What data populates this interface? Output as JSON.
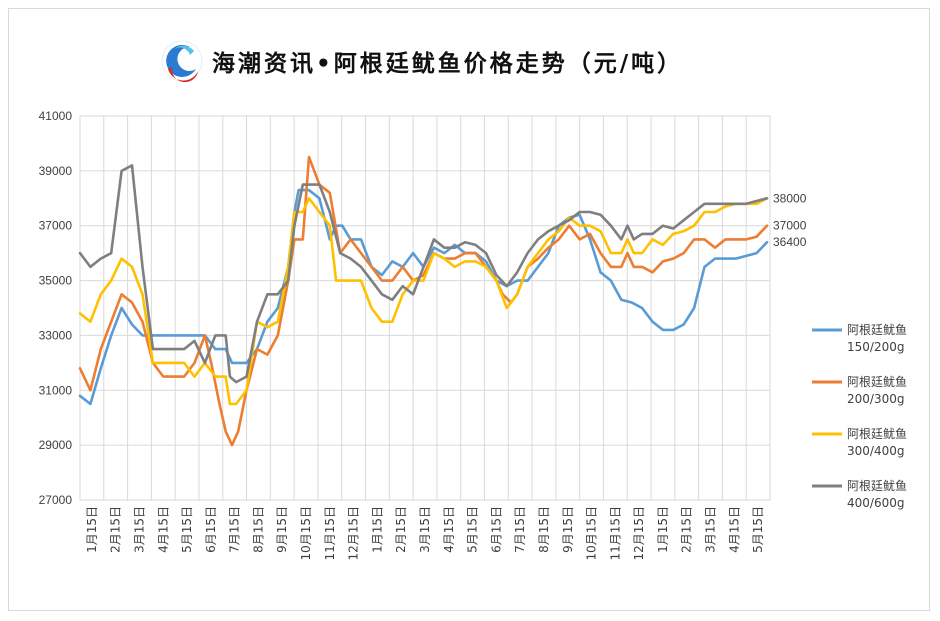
{
  "title": "海潮资讯•阿根廷鱿鱼价格走势（元/吨）",
  "logo_icon": "haichao-logo-icon",
  "chart_data": {
    "type": "line",
    "title": "海潮资讯•阿根廷鱿鱼价格走势（元/吨）",
    "ylim": [
      27000,
      41000
    ],
    "yticks": [
      27000,
      29000,
      31000,
      33000,
      35000,
      37000,
      39000,
      41000
    ],
    "ytick_labels": [
      "27000",
      "29000",
      "31000",
      "33000",
      "35000",
      "37000",
      "39000",
      "41000"
    ],
    "xtick_labels": [
      "1月15日",
      "2月15日",
      "3月15日",
      "4月15日",
      "5月15日",
      "6月15日",
      "7月15日",
      "8月15日",
      "9月15日",
      "10月15日",
      "11月15日",
      "12月15日",
      "1月15日",
      "2月15日",
      "3月15日",
      "4月15日",
      "5月15日",
      "6月15日",
      "7月15日",
      "8月15日",
      "9月15日",
      "10月15日",
      "11月15日",
      "12月15日",
      "1月15日",
      "2月15日",
      "3月15日",
      "4月15日",
      "5月15日"
    ],
    "grid": true,
    "legend_position": "right",
    "end_labels": [
      "38000",
      "37000",
      "36400"
    ],
    "series": [
      {
        "name": "阿根廷鱿鱼150/200g",
        "legend_lines": [
          "阿根廷鱿鱼",
          "150/200g"
        ],
        "color": "#5b9bd5",
        "points": [
          [
            0,
            30800
          ],
          [
            0.5,
            30500
          ],
          [
            1,
            31800
          ],
          [
            1.5,
            33000
          ],
          [
            2,
            34000
          ],
          [
            2.5,
            33400
          ],
          [
            3,
            33000
          ],
          [
            4,
            33000
          ],
          [
            5,
            33000
          ],
          [
            5.5,
            33000
          ],
          [
            6,
            33000
          ],
          [
            6.5,
            32500
          ],
          [
            7,
            32500
          ],
          [
            7.3,
            32000
          ],
          [
            8,
            32000
          ],
          [
            8.5,
            32500
          ],
          [
            9,
            33500
          ],
          [
            9.5,
            34000
          ],
          [
            10,
            35500
          ],
          [
            10.3,
            37500
          ],
          [
            10.5,
            38300
          ],
          [
            11,
            38300
          ],
          [
            11.5,
            38000
          ],
          [
            12,
            36500
          ],
          [
            12.3,
            37000
          ],
          [
            12.6,
            37000
          ],
          [
            13,
            36500
          ],
          [
            13.5,
            36500
          ],
          [
            14,
            35500
          ],
          [
            14.5,
            35200
          ],
          [
            15,
            35700
          ],
          [
            15.5,
            35500
          ],
          [
            16,
            36000
          ],
          [
            16.5,
            35500
          ],
          [
            17,
            36200
          ],
          [
            17.5,
            36000
          ],
          [
            18,
            36300
          ],
          [
            18.5,
            36000
          ],
          [
            19,
            36000
          ],
          [
            19.5,
            35700
          ],
          [
            20,
            35000
          ],
          [
            20.5,
            34800
          ],
          [
            21,
            35000
          ],
          [
            21.5,
            35000
          ],
          [
            22,
            35500
          ],
          [
            22.5,
            36000
          ],
          [
            23,
            37000
          ],
          [
            23.5,
            37300
          ],
          [
            24,
            37400
          ],
          [
            24.5,
            36500
          ],
          [
            25,
            35300
          ],
          [
            25.5,
            35000
          ],
          [
            26,
            34300
          ],
          [
            26.5,
            34200
          ],
          [
            27,
            34000
          ],
          [
            27.5,
            33500
          ],
          [
            28,
            33200
          ],
          [
            28.5,
            33200
          ],
          [
            29,
            33400
          ],
          [
            29.5,
            34000
          ],
          [
            30,
            35500
          ],
          [
            30.5,
            35800
          ],
          [
            31,
            35800
          ],
          [
            31.5,
            35800
          ],
          [
            32,
            35900
          ],
          [
            32.5,
            36000
          ],
          [
            33,
            36400
          ]
        ]
      },
      {
        "name": "阿根廷鱿鱼200/300g",
        "legend_lines": [
          "阿根廷鱿鱼",
          "200/300g"
        ],
        "color": "#ed7d31",
        "points": [
          [
            0,
            31800
          ],
          [
            0.5,
            31000
          ],
          [
            1,
            32500
          ],
          [
            1.5,
            33500
          ],
          [
            2,
            34500
          ],
          [
            2.5,
            34200
          ],
          [
            3,
            33500
          ],
          [
            3.5,
            32000
          ],
          [
            4,
            31500
          ],
          [
            5,
            31500
          ],
          [
            5.5,
            32000
          ],
          [
            6,
            33000
          ],
          [
            6.3,
            32000
          ],
          [
            6.7,
            30500
          ],
          [
            7,
            29500
          ],
          [
            7.3,
            29000
          ],
          [
            7.6,
            29500
          ],
          [
            8,
            31000
          ],
          [
            8.5,
            32500
          ],
          [
            9,
            32300
          ],
          [
            9.5,
            33000
          ],
          [
            10,
            35000
          ],
          [
            10.3,
            36500
          ],
          [
            10.7,
            36500
          ],
          [
            11,
            39500
          ],
          [
            11.5,
            38500
          ],
          [
            12,
            38200
          ],
          [
            12.5,
            36000
          ],
          [
            13,
            36500
          ],
          [
            13.5,
            36000
          ],
          [
            14,
            35500
          ],
          [
            14.5,
            35000
          ],
          [
            15,
            35000
          ],
          [
            15.5,
            35500
          ],
          [
            16,
            35000
          ],
          [
            16.5,
            35200
          ],
          [
            17,
            36000
          ],
          [
            17.5,
            35800
          ],
          [
            18,
            35800
          ],
          [
            18.5,
            36000
          ],
          [
            19,
            36000
          ],
          [
            19.5,
            35500
          ],
          [
            20,
            35000
          ],
          [
            20.3,
            34500
          ],
          [
            20.7,
            34200
          ],
          [
            21,
            34500
          ],
          [
            21.5,
            35500
          ],
          [
            22,
            35800
          ],
          [
            22.5,
            36200
          ],
          [
            23,
            36500
          ],
          [
            23.5,
            37000
          ],
          [
            24,
            36500
          ],
          [
            24.5,
            36700
          ],
          [
            25,
            36000
          ],
          [
            25.5,
            35500
          ],
          [
            26,
            35500
          ],
          [
            26.3,
            36000
          ],
          [
            26.6,
            35500
          ],
          [
            27,
            35500
          ],
          [
            27.5,
            35300
          ],
          [
            28,
            35700
          ],
          [
            28.5,
            35800
          ],
          [
            29,
            36000
          ],
          [
            29.5,
            36500
          ],
          [
            30,
            36500
          ],
          [
            30.5,
            36200
          ],
          [
            31,
            36500
          ],
          [
            31.5,
            36500
          ],
          [
            32,
            36500
          ],
          [
            32.5,
            36600
          ],
          [
            33,
            37000
          ]
        ]
      },
      {
        "name": "阿根廷鱿鱼300/400g",
        "legend_lines": [
          "阿根廷鱿鱼",
          "300/400g"
        ],
        "color": "#ffc000",
        "points": [
          [
            0,
            33800
          ],
          [
            0.5,
            33500
          ],
          [
            1,
            34500
          ],
          [
            1.5,
            35000
          ],
          [
            2,
            35800
          ],
          [
            2.5,
            35500
          ],
          [
            3,
            34500
          ],
          [
            3.5,
            32000
          ],
          [
            4,
            32000
          ],
          [
            5,
            32000
          ],
          [
            5.5,
            31500
          ],
          [
            6,
            32000
          ],
          [
            6.5,
            31500
          ],
          [
            7,
            31500
          ],
          [
            7.2,
            30500
          ],
          [
            7.5,
            30500
          ],
          [
            8,
            31000
          ],
          [
            8.5,
            33500
          ],
          [
            9,
            33300
          ],
          [
            9.5,
            33500
          ],
          [
            10,
            35500
          ],
          [
            10.3,
            37500
          ],
          [
            10.7,
            37500
          ],
          [
            11,
            38000
          ],
          [
            11.5,
            37500
          ],
          [
            12,
            37000
          ],
          [
            12.3,
            35000
          ],
          [
            13,
            35000
          ],
          [
            13.5,
            35000
          ],
          [
            14,
            34000
          ],
          [
            14.5,
            33500
          ],
          [
            15,
            33500
          ],
          [
            15.5,
            34500
          ],
          [
            16,
            35000
          ],
          [
            16.5,
            35000
          ],
          [
            17,
            36000
          ],
          [
            17.5,
            35800
          ],
          [
            18,
            35500
          ],
          [
            18.5,
            35700
          ],
          [
            19,
            35700
          ],
          [
            19.5,
            35500
          ],
          [
            20,
            35000
          ],
          [
            20.5,
            34000
          ],
          [
            21,
            34500
          ],
          [
            21.5,
            35500
          ],
          [
            22,
            36000
          ],
          [
            22.5,
            36500
          ],
          [
            23,
            36800
          ],
          [
            23.5,
            37300
          ],
          [
            24,
            37000
          ],
          [
            24.5,
            37000
          ],
          [
            25,
            36800
          ],
          [
            25.5,
            36000
          ],
          [
            26,
            36000
          ],
          [
            26.3,
            36500
          ],
          [
            26.6,
            36000
          ],
          [
            27,
            36000
          ],
          [
            27.5,
            36500
          ],
          [
            28,
            36300
          ],
          [
            28.5,
            36700
          ],
          [
            29,
            36800
          ],
          [
            29.5,
            37000
          ],
          [
            30,
            37500
          ],
          [
            30.5,
            37500
          ],
          [
            31,
            37700
          ],
          [
            31.5,
            37800
          ],
          [
            32,
            37800
          ],
          [
            32.5,
            37800
          ],
          [
            33,
            38000
          ]
        ]
      },
      {
        "name": "阿根廷鱿鱼400/600g",
        "legend_lines": [
          "阿根廷鱿鱼",
          "400/600g"
        ],
        "color": "#7f7f7f",
        "points": [
          [
            0,
            36000
          ],
          [
            0.5,
            35500
          ],
          [
            1,
            35800
          ],
          [
            1.5,
            36000
          ],
          [
            2,
            39000
          ],
          [
            2.5,
            39200
          ],
          [
            3,
            35500
          ],
          [
            3.5,
            32500
          ],
          [
            4,
            32500
          ],
          [
            5,
            32500
          ],
          [
            5.5,
            32800
          ],
          [
            6,
            32000
          ],
          [
            6.5,
            33000
          ],
          [
            7,
            33000
          ],
          [
            7.2,
            31500
          ],
          [
            7.5,
            31300
          ],
          [
            8,
            31500
          ],
          [
            8.5,
            33500
          ],
          [
            9,
            34500
          ],
          [
            9.5,
            34500
          ],
          [
            10,
            35000
          ],
          [
            10.3,
            37000
          ],
          [
            10.7,
            38500
          ],
          [
            11,
            38500
          ],
          [
            11.5,
            38500
          ],
          [
            12,
            37500
          ],
          [
            12.5,
            36000
          ],
          [
            13,
            35800
          ],
          [
            13.5,
            35500
          ],
          [
            14,
            35000
          ],
          [
            14.5,
            34500
          ],
          [
            15,
            34300
          ],
          [
            15.5,
            34800
          ],
          [
            16,
            34500
          ],
          [
            16.5,
            35500
          ],
          [
            17,
            36500
          ],
          [
            17.5,
            36200
          ],
          [
            18,
            36200
          ],
          [
            18.5,
            36400
          ],
          [
            19,
            36300
          ],
          [
            19.5,
            36000
          ],
          [
            20,
            35200
          ],
          [
            20.5,
            34800
          ],
          [
            21,
            35300
          ],
          [
            21.5,
            36000
          ],
          [
            22,
            36500
          ],
          [
            22.5,
            36800
          ],
          [
            23,
            37000
          ],
          [
            23.5,
            37200
          ],
          [
            24,
            37500
          ],
          [
            24.5,
            37500
          ],
          [
            25,
            37400
          ],
          [
            25.5,
            37000
          ],
          [
            26,
            36500
          ],
          [
            26.3,
            37000
          ],
          [
            26.6,
            36500
          ],
          [
            27,
            36700
          ],
          [
            27.5,
            36700
          ],
          [
            28,
            37000
          ],
          [
            28.5,
            36900
          ],
          [
            29,
            37200
          ],
          [
            29.5,
            37500
          ],
          [
            30,
            37800
          ],
          [
            30.5,
            37800
          ],
          [
            31,
            37800
          ],
          [
            31.5,
            37800
          ],
          [
            32,
            37800
          ],
          [
            32.5,
            37900
          ],
          [
            33,
            38000
          ]
        ]
      }
    ]
  }
}
